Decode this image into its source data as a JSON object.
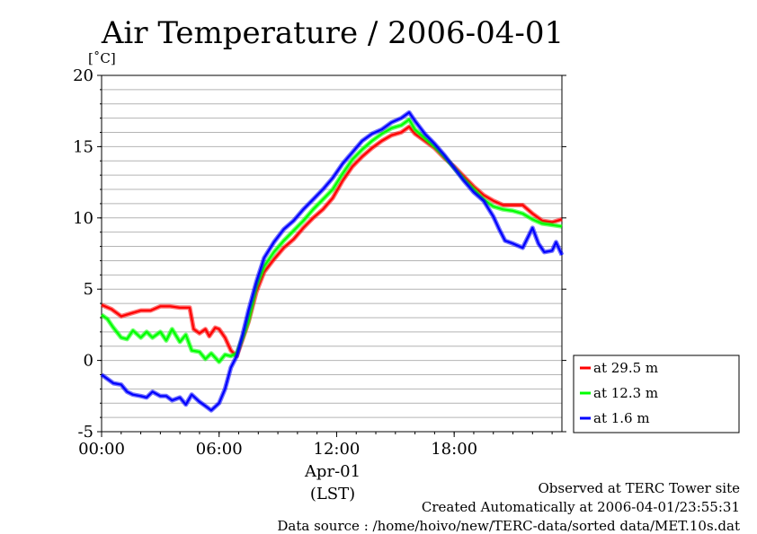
{
  "chart_data": {
    "type": "line",
    "title": "Air Temperature / 2006-04-01",
    "ylabel": "[˚C]",
    "ylim": [
      -5,
      20
    ],
    "yticks": [
      -5,
      0,
      5,
      10,
      15,
      20
    ],
    "xlim": [
      0,
      23.5
    ],
    "xticks": [
      {
        "value": 0,
        "label": "00:00"
      },
      {
        "value": 6,
        "label": "06:00"
      },
      {
        "value": 12,
        "label": "12:00"
      },
      {
        "value": 18,
        "label": "18:00"
      }
    ],
    "x_date_label": "Apr-01",
    "x_unit_label": "(LST)",
    "grid": true,
    "legend_position": "right",
    "series": [
      {
        "name": "at 29.5 m",
        "color": "#ff0000",
        "points": [
          [
            0.0,
            3.9
          ],
          [
            0.5,
            3.6
          ],
          [
            1.0,
            3.1
          ],
          [
            1.5,
            3.3
          ],
          [
            2.0,
            3.5
          ],
          [
            2.5,
            3.5
          ],
          [
            3.0,
            3.8
          ],
          [
            3.5,
            3.8
          ],
          [
            4.0,
            3.7
          ],
          [
            4.5,
            3.7
          ],
          [
            4.7,
            2.2
          ],
          [
            5.0,
            1.9
          ],
          [
            5.3,
            2.2
          ],
          [
            5.5,
            1.7
          ],
          [
            5.8,
            2.3
          ],
          [
            6.0,
            2.2
          ],
          [
            6.3,
            1.6
          ],
          [
            6.6,
            0.7
          ],
          [
            6.9,
            0.3
          ],
          [
            7.2,
            1.5
          ],
          [
            7.5,
            2.7
          ],
          [
            7.9,
            4.8
          ],
          [
            8.3,
            6.2
          ],
          [
            8.8,
            7.1
          ],
          [
            9.3,
            7.9
          ],
          [
            9.8,
            8.5
          ],
          [
            10.3,
            9.3
          ],
          [
            10.8,
            10.0
          ],
          [
            11.3,
            10.6
          ],
          [
            11.8,
            11.4
          ],
          [
            12.3,
            12.6
          ],
          [
            12.8,
            13.6
          ],
          [
            13.3,
            14.3
          ],
          [
            13.8,
            14.9
          ],
          [
            14.3,
            15.4
          ],
          [
            14.8,
            15.8
          ],
          [
            15.3,
            16.0
          ],
          [
            15.7,
            16.4
          ],
          [
            16.0,
            15.9
          ],
          [
            16.5,
            15.4
          ],
          [
            17.0,
            14.9
          ],
          [
            17.5,
            14.2
          ],
          [
            18.0,
            13.6
          ],
          [
            18.5,
            12.9
          ],
          [
            19.0,
            12.2
          ],
          [
            19.5,
            11.6
          ],
          [
            20.0,
            11.2
          ],
          [
            20.5,
            10.9
          ],
          [
            21.0,
            10.9
          ],
          [
            21.5,
            10.9
          ],
          [
            22.0,
            10.3
          ],
          [
            22.5,
            9.8
          ],
          [
            23.0,
            9.7
          ],
          [
            23.5,
            9.9
          ]
        ]
      },
      {
        "name": "at 12.3 m",
        "color": "#00ff00",
        "points": [
          [
            0.0,
            3.2
          ],
          [
            0.3,
            2.9
          ],
          [
            0.6,
            2.3
          ],
          [
            1.0,
            1.6
          ],
          [
            1.3,
            1.5
          ],
          [
            1.6,
            2.1
          ],
          [
            2.0,
            1.6
          ],
          [
            2.3,
            2.0
          ],
          [
            2.6,
            1.6
          ],
          [
            3.0,
            2.0
          ],
          [
            3.3,
            1.4
          ],
          [
            3.6,
            2.2
          ],
          [
            4.0,
            1.3
          ],
          [
            4.3,
            1.8
          ],
          [
            4.6,
            0.7
          ],
          [
            5.0,
            0.6
          ],
          [
            5.3,
            0.1
          ],
          [
            5.6,
            0.5
          ],
          [
            6.0,
            -0.1
          ],
          [
            6.3,
            0.4
          ],
          [
            6.6,
            0.3
          ],
          [
            6.9,
            0.5
          ],
          [
            7.2,
            1.6
          ],
          [
            7.5,
            2.8
          ],
          [
            7.9,
            5.2
          ],
          [
            8.3,
            6.6
          ],
          [
            8.8,
            7.6
          ],
          [
            9.3,
            8.4
          ],
          [
            9.8,
            9.1
          ],
          [
            10.3,
            9.8
          ],
          [
            10.8,
            10.6
          ],
          [
            11.3,
            11.3
          ],
          [
            11.8,
            12.0
          ],
          [
            12.3,
            13.1
          ],
          [
            12.8,
            14.1
          ],
          [
            13.3,
            14.8
          ],
          [
            13.8,
            15.4
          ],
          [
            14.3,
            15.9
          ],
          [
            14.8,
            16.3
          ],
          [
            15.3,
            16.5
          ],
          [
            15.7,
            16.9
          ],
          [
            16.0,
            16.2
          ],
          [
            16.5,
            15.6
          ],
          [
            17.0,
            15.0
          ],
          [
            17.5,
            14.3
          ],
          [
            18.0,
            13.5
          ],
          [
            18.5,
            12.7
          ],
          [
            19.0,
            12.0
          ],
          [
            19.5,
            11.3
          ],
          [
            20.0,
            10.8
          ],
          [
            20.5,
            10.6
          ],
          [
            21.0,
            10.5
          ],
          [
            21.5,
            10.3
          ],
          [
            22.0,
            9.9
          ],
          [
            22.5,
            9.6
          ],
          [
            23.0,
            9.5
          ],
          [
            23.5,
            9.4
          ]
        ]
      },
      {
        "name": "at 1.6 m",
        "color": "#0000ff",
        "points": [
          [
            0.0,
            -1.0
          ],
          [
            0.3,
            -1.3
          ],
          [
            0.6,
            -1.6
          ],
          [
            1.0,
            -1.7
          ],
          [
            1.3,
            -2.2
          ],
          [
            1.6,
            -2.4
          ],
          [
            2.0,
            -2.5
          ],
          [
            2.3,
            -2.6
          ],
          [
            2.6,
            -2.2
          ],
          [
            3.0,
            -2.5
          ],
          [
            3.3,
            -2.5
          ],
          [
            3.6,
            -2.8
          ],
          [
            4.0,
            -2.6
          ],
          [
            4.3,
            -3.1
          ],
          [
            4.6,
            -2.4
          ],
          [
            5.0,
            -2.9
          ],
          [
            5.3,
            -3.2
          ],
          [
            5.6,
            -3.5
          ],
          [
            6.0,
            -3.0
          ],
          [
            6.3,
            -2.0
          ],
          [
            6.6,
            -0.5
          ],
          [
            6.9,
            0.3
          ],
          [
            7.2,
            1.8
          ],
          [
            7.5,
            3.5
          ],
          [
            7.9,
            5.5
          ],
          [
            8.3,
            7.2
          ],
          [
            8.8,
            8.3
          ],
          [
            9.3,
            9.2
          ],
          [
            9.8,
            9.8
          ],
          [
            10.3,
            10.6
          ],
          [
            10.8,
            11.3
          ],
          [
            11.3,
            12.0
          ],
          [
            11.8,
            12.8
          ],
          [
            12.3,
            13.8
          ],
          [
            12.8,
            14.6
          ],
          [
            13.3,
            15.4
          ],
          [
            13.8,
            15.9
          ],
          [
            14.3,
            16.2
          ],
          [
            14.8,
            16.7
          ],
          [
            15.3,
            17.0
          ],
          [
            15.7,
            17.4
          ],
          [
            16.0,
            16.8
          ],
          [
            16.5,
            15.9
          ],
          [
            17.0,
            15.2
          ],
          [
            17.5,
            14.4
          ],
          [
            18.0,
            13.5
          ],
          [
            18.5,
            12.6
          ],
          [
            19.0,
            11.8
          ],
          [
            19.5,
            11.2
          ],
          [
            20.0,
            10.1
          ],
          [
            20.3,
            9.2
          ],
          [
            20.6,
            8.4
          ],
          [
            21.0,
            8.2
          ],
          [
            21.5,
            7.9
          ],
          [
            22.0,
            9.3
          ],
          [
            22.3,
            8.2
          ],
          [
            22.6,
            7.6
          ],
          [
            23.0,
            7.7
          ],
          [
            23.2,
            8.3
          ],
          [
            23.5,
            7.4
          ]
        ]
      }
    ]
  },
  "footer": {
    "line1": "Observed at TERC Tower site",
    "line2": "Created Automatically at 2006-04-01/23:55:31",
    "line3": "Data source : /home/hoivo/new/TERC-data/sorted  data/MET.10s.dat"
  }
}
